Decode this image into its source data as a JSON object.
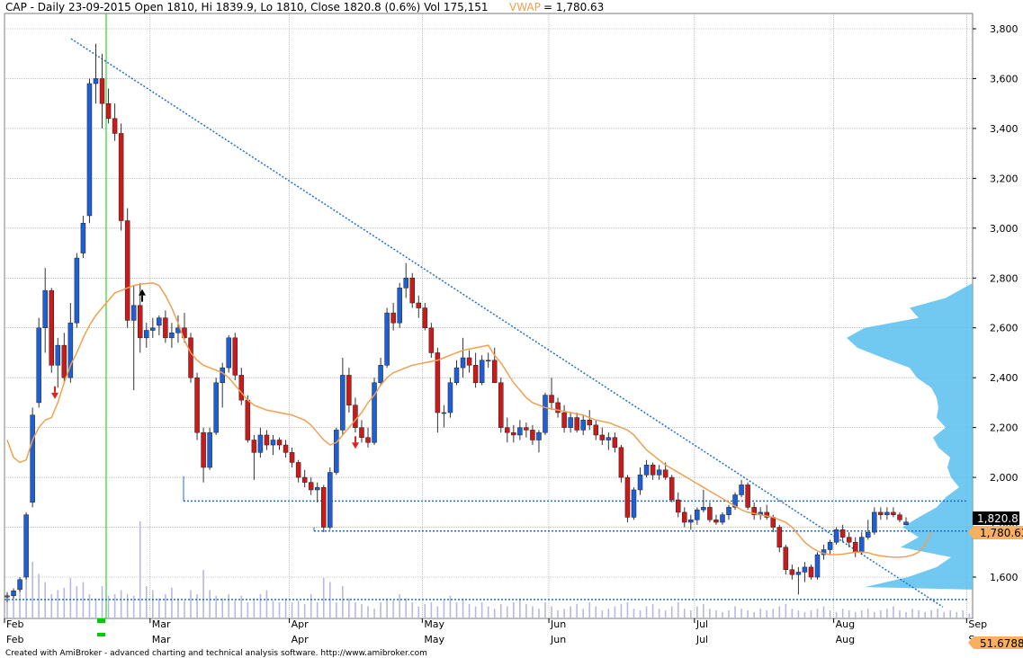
{
  "header": {
    "symbol_line": "CAP - Daily 23-09-2015 Open 1810, Hi 1839.9, Lo 1810, Close 1820.8 (0.6%) Vol 175,151",
    "vwap_label": "VWAP",
    "vwap_value": "= 1,780.63"
  },
  "footer": "Created with AmiBroker - advanced charting and technical analysis software. http://www.amibroker.com",
  "price_badge": "1,820.8",
  "vwap_badge": "1,780.63",
  "volume_badge": "51.6788",
  "colors": {
    "up": "#1f5fd6",
    "down": "#cc1a1a",
    "vwap": "#f0a050",
    "trend": "#1e6fcf",
    "volume": "#b8b8e0",
    "profile": "#58c0f0",
    "cursor": "#00cc00",
    "grid": "#9a9a9a"
  },
  "chart_data": {
    "type": "candlestick",
    "y_ticks": [
      "1,600",
      "1,800",
      "2,000",
      "2,200",
      "2,400",
      "2,600",
      "2,800",
      "3,000",
      "3,200",
      "3,400",
      "3,600",
      "3,800"
    ],
    "y_tick_values": [
      1600,
      1800,
      2000,
      2200,
      2400,
      2600,
      2800,
      3000,
      3200,
      3400,
      3600,
      3800
    ],
    "ylim": [
      1480,
      3850
    ],
    "months_row1": [
      "Feb",
      "Mar",
      "Apr",
      "May",
      "Jun",
      "Jul",
      "Aug",
      "Sep"
    ],
    "months_row2": [
      "Feb",
      "Mar",
      "Apr",
      "May",
      "Jun",
      "Jul",
      "Aug",
      "Sep"
    ],
    "month_start_index": [
      0,
      23,
      45,
      66,
      86,
      109,
      131,
      152
    ],
    "bars": [
      {
        "o": 1520,
        "h": 1540,
        "l": 1500,
        "c": 1525
      },
      {
        "o": 1525,
        "h": 1555,
        "l": 1515,
        "c": 1545
      },
      {
        "o": 1550,
        "h": 1600,
        "l": 1540,
        "c": 1590
      },
      {
        "o": 1600,
        "h": 1860,
        "l": 1590,
        "c": 1850
      },
      {
        "o": 1900,
        "h": 2280,
        "l": 1880,
        "c": 2250
      },
      {
        "o": 2300,
        "h": 2640,
        "l": 2280,
        "c": 2600
      },
      {
        "o": 2600,
        "h": 2840,
        "l": 2500,
        "c": 2750
      },
      {
        "o": 2750,
        "h": 2760,
        "l": 2420,
        "c": 2450
      },
      {
        "o": 2450,
        "h": 2560,
        "l": 2360,
        "c": 2530
      },
      {
        "o": 2530,
        "h": 2580,
        "l": 2380,
        "c": 2400
      },
      {
        "o": 2400,
        "h": 2700,
        "l": 2380,
        "c": 2620
      },
      {
        "o": 2620,
        "h": 2900,
        "l": 2600,
        "c": 2880
      },
      {
        "o": 2900,
        "h": 3050,
        "l": 2880,
        "c": 3020
      },
      {
        "o": 3050,
        "h": 3600,
        "l": 3020,
        "c": 3580
      },
      {
        "o": 3580,
        "h": 3740,
        "l": 3500,
        "c": 3600
      },
      {
        "o": 3600,
        "h": 3700,
        "l": 3400,
        "c": 3500
      },
      {
        "o": 3500,
        "h": 3560,
        "l": 3420,
        "c": 3440
      },
      {
        "o": 3440,
        "h": 3500,
        "l": 3350,
        "c": 3380
      },
      {
        "o": 3380,
        "h": 3420,
        "l": 2990,
        "c": 3030
      },
      {
        "o": 3030,
        "h": 3080,
        "l": 2600,
        "c": 2630
      },
      {
        "o": 2630,
        "h": 2770,
        "l": 2350,
        "c": 2690
      },
      {
        "o": 2690,
        "h": 2780,
        "l": 2500,
        "c": 2560
      },
      {
        "o": 2560,
        "h": 2620,
        "l": 2520,
        "c": 2590
      },
      {
        "o": 2590,
        "h": 2640,
        "l": 2560,
        "c": 2600
      },
      {
        "o": 2610,
        "h": 2650,
        "l": 2570,
        "c": 2640
      },
      {
        "o": 2640,
        "h": 2670,
        "l": 2540,
        "c": 2560
      },
      {
        "o": 2560,
        "h": 2620,
        "l": 2520,
        "c": 2580
      },
      {
        "o": 2580,
        "h": 2650,
        "l": 2540,
        "c": 2600
      },
      {
        "o": 2600,
        "h": 2660,
        "l": 2540,
        "c": 2560
      },
      {
        "o": 2560,
        "h": 2580,
        "l": 2380,
        "c": 2400
      },
      {
        "o": 2400,
        "h": 2420,
        "l": 2150,
        "c": 2180
      },
      {
        "o": 2180,
        "h": 2200,
        "l": 1980,
        "c": 2040
      },
      {
        "o": 2040,
        "h": 2200,
        "l": 2030,
        "c": 2180
      },
      {
        "o": 2180,
        "h": 2400,
        "l": 2170,
        "c": 2380
      },
      {
        "o": 2380,
        "h": 2460,
        "l": 2280,
        "c": 2440
      },
      {
        "o": 2440,
        "h": 2570,
        "l": 2420,
        "c": 2560
      },
      {
        "o": 2560,
        "h": 2580,
        "l": 2390,
        "c": 2410
      },
      {
        "o": 2410,
        "h": 2440,
        "l": 2290,
        "c": 2310
      },
      {
        "o": 2310,
        "h": 2330,
        "l": 2140,
        "c": 2150
      },
      {
        "o": 2150,
        "h": 2170,
        "l": 1990,
        "c": 2100
      },
      {
        "o": 2100,
        "h": 2200,
        "l": 2080,
        "c": 2170
      },
      {
        "o": 2170,
        "h": 2190,
        "l": 2110,
        "c": 2130
      },
      {
        "o": 2130,
        "h": 2170,
        "l": 2090,
        "c": 2150
      },
      {
        "o": 2150,
        "h": 2160,
        "l": 2110,
        "c": 2130
      },
      {
        "o": 2130,
        "h": 2150,
        "l": 2080,
        "c": 2100
      },
      {
        "o": 2100,
        "h": 2120,
        "l": 2040,
        "c": 2060
      },
      {
        "o": 2060,
        "h": 2070,
        "l": 1980,
        "c": 2000
      },
      {
        "o": 2000,
        "h": 2030,
        "l": 1960,
        "c": 1980
      },
      {
        "o": 1980,
        "h": 2000,
        "l": 1930,
        "c": 1950
      },
      {
        "o": 1950,
        "h": 1980,
        "l": 1900,
        "c": 1960
      },
      {
        "o": 1960,
        "h": 1970,
        "l": 1780,
        "c": 1800
      },
      {
        "o": 1800,
        "h": 2040,
        "l": 1790,
        "c": 2020
      },
      {
        "o": 2020,
        "h": 2200,
        "l": 2010,
        "c": 2190
      },
      {
        "o": 2190,
        "h": 2480,
        "l": 2170,
        "c": 2410
      },
      {
        "o": 2410,
        "h": 2440,
        "l": 2260,
        "c": 2290
      },
      {
        "o": 2290,
        "h": 2320,
        "l": 2180,
        "c": 2200
      },
      {
        "o": 2200,
        "h": 2230,
        "l": 2140,
        "c": 2160
      },
      {
        "o": 2160,
        "h": 2200,
        "l": 2120,
        "c": 2140
      },
      {
        "o": 2140,
        "h": 2400,
        "l": 2130,
        "c": 2380
      },
      {
        "o": 2380,
        "h": 2480,
        "l": 2370,
        "c": 2450
      },
      {
        "o": 2450,
        "h": 2680,
        "l": 2440,
        "c": 2660
      },
      {
        "o": 2660,
        "h": 2700,
        "l": 2590,
        "c": 2620
      },
      {
        "o": 2620,
        "h": 2780,
        "l": 2600,
        "c": 2760
      },
      {
        "o": 2760,
        "h": 2860,
        "l": 2720,
        "c": 2800
      },
      {
        "o": 2800,
        "h": 2820,
        "l": 2680,
        "c": 2700
      },
      {
        "o": 2700,
        "h": 2730,
        "l": 2640,
        "c": 2680
      },
      {
        "o": 2680,
        "h": 2700,
        "l": 2590,
        "c": 2600
      },
      {
        "o": 2600,
        "h": 2620,
        "l": 2480,
        "c": 2500
      },
      {
        "o": 2500,
        "h": 2520,
        "l": 2180,
        "c": 2260
      },
      {
        "o": 2260,
        "h": 2290,
        "l": 2200,
        "c": 2260
      },
      {
        "o": 2260,
        "h": 2400,
        "l": 2240,
        "c": 2380
      },
      {
        "o": 2380,
        "h": 2470,
        "l": 2370,
        "c": 2440
      },
      {
        "o": 2440,
        "h": 2560,
        "l": 2400,
        "c": 2480
      },
      {
        "o": 2480,
        "h": 2510,
        "l": 2420,
        "c": 2450
      },
      {
        "o": 2450,
        "h": 2500,
        "l": 2360,
        "c": 2380
      },
      {
        "o": 2380,
        "h": 2490,
        "l": 2370,
        "c": 2470
      },
      {
        "o": 2470,
        "h": 2500,
        "l": 2440,
        "c": 2470
      },
      {
        "o": 2470,
        "h": 2520,
        "l": 2380,
        "c": 2380
      },
      {
        "o": 2380,
        "h": 2400,
        "l": 2180,
        "c": 2200
      },
      {
        "o": 2200,
        "h": 2240,
        "l": 2140,
        "c": 2180
      },
      {
        "o": 2180,
        "h": 2210,
        "l": 2140,
        "c": 2170
      },
      {
        "o": 2170,
        "h": 2230,
        "l": 2150,
        "c": 2200
      },
      {
        "o": 2200,
        "h": 2220,
        "l": 2160,
        "c": 2190
      },
      {
        "o": 2190,
        "h": 2210,
        "l": 2130,
        "c": 2150
      },
      {
        "o": 2150,
        "h": 2190,
        "l": 2100,
        "c": 2180
      },
      {
        "o": 2180,
        "h": 2340,
        "l": 2170,
        "c": 2330
      },
      {
        "o": 2330,
        "h": 2400,
        "l": 2270,
        "c": 2300
      },
      {
        "o": 2300,
        "h": 2320,
        "l": 2240,
        "c": 2260
      },
      {
        "o": 2260,
        "h": 2290,
        "l": 2180,
        "c": 2200
      },
      {
        "o": 2200,
        "h": 2260,
        "l": 2180,
        "c": 2240
      },
      {
        "o": 2240,
        "h": 2260,
        "l": 2180,
        "c": 2190
      },
      {
        "o": 2190,
        "h": 2250,
        "l": 2170,
        "c": 2230
      },
      {
        "o": 2230,
        "h": 2270,
        "l": 2190,
        "c": 2210
      },
      {
        "o": 2210,
        "h": 2230,
        "l": 2150,
        "c": 2170
      },
      {
        "o": 2170,
        "h": 2200,
        "l": 2130,
        "c": 2150
      },
      {
        "o": 2150,
        "h": 2180,
        "l": 2110,
        "c": 2160
      },
      {
        "o": 2160,
        "h": 2180,
        "l": 2100,
        "c": 2120
      },
      {
        "o": 2120,
        "h": 2130,
        "l": 1980,
        "c": 2000
      },
      {
        "o": 2000,
        "h": 2010,
        "l": 1820,
        "c": 1840
      },
      {
        "o": 1840,
        "h": 1960,
        "l": 1830,
        "c": 1950
      },
      {
        "o": 1950,
        "h": 2040,
        "l": 1930,
        "c": 2010
      },
      {
        "o": 2010,
        "h": 2070,
        "l": 2000,
        "c": 2050
      },
      {
        "o": 2050,
        "h": 2060,
        "l": 1990,
        "c": 2010
      },
      {
        "o": 2010,
        "h": 2050,
        "l": 1990,
        "c": 2030
      },
      {
        "o": 2030,
        "h": 2060,
        "l": 1990,
        "c": 2000
      },
      {
        "o": 2000,
        "h": 2010,
        "l": 1900,
        "c": 1910
      },
      {
        "o": 1910,
        "h": 1940,
        "l": 1840,
        "c": 1860
      },
      {
        "o": 1860,
        "h": 1880,
        "l": 1800,
        "c": 1820
      },
      {
        "o": 1820,
        "h": 1850,
        "l": 1790,
        "c": 1830
      },
      {
        "o": 1830,
        "h": 1880,
        "l": 1810,
        "c": 1870
      },
      {
        "o": 1870,
        "h": 1950,
        "l": 1860,
        "c": 1880
      },
      {
        "o": 1880,
        "h": 1900,
        "l": 1820,
        "c": 1830
      },
      {
        "o": 1830,
        "h": 1850,
        "l": 1810,
        "c": 1820
      },
      {
        "o": 1820,
        "h": 1860,
        "l": 1810,
        "c": 1850
      },
      {
        "o": 1850,
        "h": 1890,
        "l": 1830,
        "c": 1880
      },
      {
        "o": 1880,
        "h": 1940,
        "l": 1870,
        "c": 1930
      },
      {
        "o": 1930,
        "h": 1990,
        "l": 1920,
        "c": 1970
      },
      {
        "o": 1970,
        "h": 1980,
        "l": 1870,
        "c": 1880
      },
      {
        "o": 1880,
        "h": 1900,
        "l": 1830,
        "c": 1850
      },
      {
        "o": 1850,
        "h": 1880,
        "l": 1830,
        "c": 1860
      },
      {
        "o": 1860,
        "h": 1890,
        "l": 1830,
        "c": 1840
      },
      {
        "o": 1840,
        "h": 1850,
        "l": 1780,
        "c": 1800
      },
      {
        "o": 1800,
        "h": 1810,
        "l": 1700,
        "c": 1720
      },
      {
        "o": 1720,
        "h": 1730,
        "l": 1610,
        "c": 1630
      },
      {
        "o": 1630,
        "h": 1650,
        "l": 1590,
        "c": 1610
      },
      {
        "o": 1610,
        "h": 1640,
        "l": 1530,
        "c": 1620
      },
      {
        "o": 1620,
        "h": 1660,
        "l": 1580,
        "c": 1640
      },
      {
        "o": 1640,
        "h": 1650,
        "l": 1590,
        "c": 1600
      },
      {
        "o": 1600,
        "h": 1700,
        "l": 1590,
        "c": 1690
      },
      {
        "o": 1690,
        "h": 1730,
        "l": 1670,
        "c": 1710
      },
      {
        "o": 1710,
        "h": 1750,
        "l": 1690,
        "c": 1740
      },
      {
        "o": 1740,
        "h": 1800,
        "l": 1730,
        "c": 1790
      },
      {
        "o": 1790,
        "h": 1810,
        "l": 1740,
        "c": 1760
      },
      {
        "o": 1760,
        "h": 1780,
        "l": 1720,
        "c": 1740
      },
      {
        "o": 1740,
        "h": 1760,
        "l": 1680,
        "c": 1700
      },
      {
        "o": 1700,
        "h": 1780,
        "l": 1690,
        "c": 1760
      },
      {
        "o": 1760,
        "h": 1830,
        "l": 1750,
        "c": 1780
      },
      {
        "o": 1780,
        "h": 1880,
        "l": 1770,
        "c": 1860
      },
      {
        "o": 1860,
        "h": 1880,
        "l": 1830,
        "c": 1850
      },
      {
        "o": 1850,
        "h": 1880,
        "l": 1830,
        "c": 1860
      },
      {
        "o": 1860,
        "h": 1880,
        "l": 1840,
        "c": 1850
      },
      {
        "o": 1850,
        "h": 1860,
        "l": 1820,
        "c": 1830
      },
      {
        "o": 1810,
        "h": 1840,
        "l": 1810,
        "c": 1821
      }
    ],
    "vwap": [
      2150,
      2080,
      2060,
      2070,
      2150,
      2200,
      2230,
      2240,
      2300,
      2380,
      2450,
      2500,
      2560,
      2610,
      2650,
      2680,
      2710,
      2740,
      2750,
      2760,
      2770,
      2775,
      2778,
      2780,
      2770,
      2730,
      2680,
      2620,
      2550,
      2500,
      2470,
      2450,
      2440,
      2430,
      2420,
      2400,
      2370,
      2340,
      2310,
      2290,
      2280,
      2270,
      2265,
      2260,
      2255,
      2250,
      2240,
      2230,
      2210,
      2180,
      2150,
      2130,
      2140,
      2170,
      2200,
      2230,
      2260,
      2300,
      2330,
      2370,
      2400,
      2420,
      2430,
      2440,
      2450,
      2455,
      2460,
      2465,
      2470,
      2480,
      2490,
      2500,
      2510,
      2515,
      2520,
      2525,
      2530,
      2490,
      2460,
      2420,
      2380,
      2350,
      2320,
      2300,
      2290,
      2280,
      2275,
      2270,
      2265,
      2260,
      2255,
      2250,
      2240,
      2230,
      2225,
      2220,
      2210,
      2200,
      2190,
      2170,
      2140,
      2110,
      2090,
      2070,
      2050,
      2035,
      2020,
      2005,
      1990,
      1975,
      1960,
      1945,
      1930,
      1915,
      1900,
      1885,
      1870,
      1860,
      1855,
      1850,
      1845,
      1840,
      1830,
      1820,
      1800,
      1770,
      1740,
      1720,
      1705,
      1695,
      1690,
      1690,
      1692,
      1696,
      1700,
      1700,
      1698,
      1690,
      1685,
      1682,
      1680,
      1680,
      1682,
      1688,
      1700,
      1730,
      1780
    ],
    "volume": [
      30,
      28,
      40,
      80,
      70,
      55,
      45,
      30,
      35,
      38,
      50,
      40,
      45,
      30,
      25,
      40,
      28,
      30,
      35,
      30,
      28,
      120,
      40,
      35,
      25,
      30,
      38,
      25,
      22,
      35,
      30,
      60,
      35,
      28,
      25,
      30,
      22,
      28,
      20,
      25,
      30,
      35,
      22,
      20,
      25,
      20,
      22,
      18,
      30,
      20,
      50,
      45,
      20,
      40,
      25,
      20,
      18,
      15,
      12,
      20,
      25,
      22,
      30,
      25,
      20,
      15,
      18,
      20,
      15,
      22,
      28,
      20,
      25,
      18,
      15,
      20,
      15,
      12,
      18,
      15,
      20,
      25,
      18,
      15,
      12,
      20,
      15,
      10,
      12,
      15,
      18,
      12,
      20,
      15,
      10,
      12,
      15,
      18,
      20,
      12,
      10,
      15,
      18,
      12,
      10,
      15,
      20,
      12,
      10,
      15,
      18,
      12,
      10,
      8,
      10,
      15,
      12,
      10,
      8,
      12,
      10,
      12,
      15,
      18,
      12,
      10,
      8,
      10,
      12,
      15,
      10,
      8,
      12,
      10,
      8,
      10,
      12,
      8,
      10,
      12,
      15,
      10,
      8,
      12,
      10,
      8,
      10,
      12,
      8,
      10,
      8,
      10,
      6
    ]
  }
}
